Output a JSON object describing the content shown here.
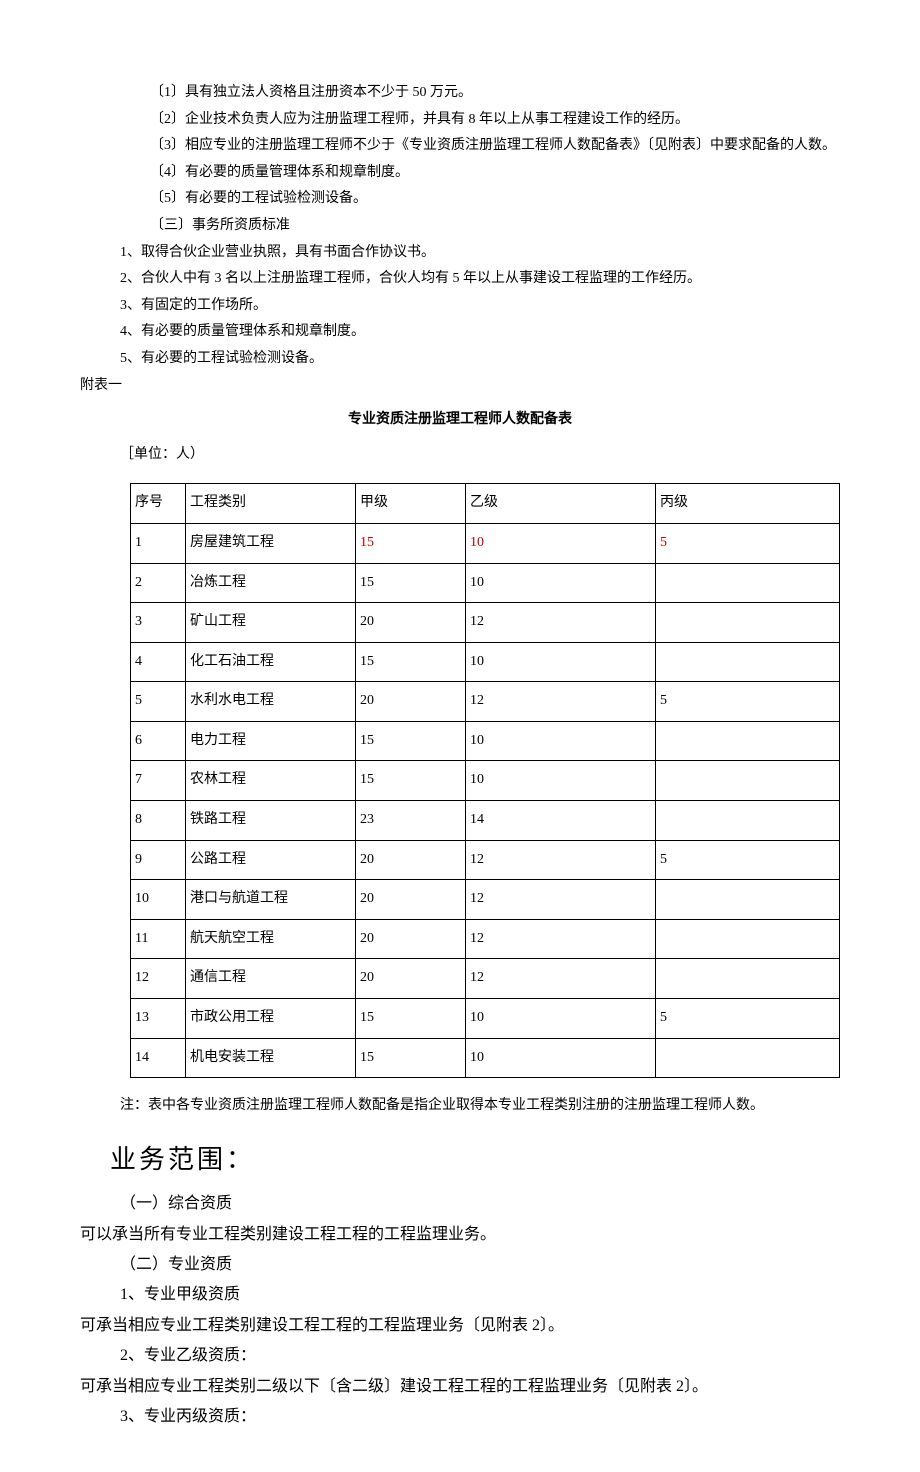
{
  "lines": [
    {
      "cls": "indent-1",
      "text": "〔1〕具有独立法人资格且注册资本不少于 50 万元。"
    },
    {
      "cls": "indent-1",
      "text": "〔2〕企业技术负责人应为注册监理工程师，并具有 8 年以上从事工程建设工作的经历。"
    },
    {
      "cls": "indent-1",
      "text": "〔3〕相应专业的注册监理工程师不少于《专业资质注册监理工程师人数配备表》〔见附表〕中要求配备的人数。"
    },
    {
      "cls": "indent-1",
      "text": "〔4〕有必要的质量管理体系和规章制度。"
    },
    {
      "cls": "indent-1",
      "text": "〔5〕有必要的工程试验检测设备。"
    },
    {
      "cls": "indent-1",
      "text": "〔三〕事务所资质标准"
    },
    {
      "cls": "indent-2",
      "text": "1、取得合伙企业营业执照，具有书面合作协议书。"
    },
    {
      "cls": "indent-2",
      "text": "2、合伙人中有 3 名以上注册监理工程师，合伙人均有 5 年以上从事建设工程监理的工作经历。"
    },
    {
      "cls": "indent-2",
      "text": "3、有固定的工作场所。"
    },
    {
      "cls": "indent-2",
      "text": "4、有必要的质量管理体系和规章制度。"
    },
    {
      "cls": "indent-2",
      "text": "5、有必要的工程试验检测设备。"
    }
  ],
  "annex_label": "附表一",
  "table_title": "专业资质注册监理工程师人数配备表",
  "unit_label": "［单位：人）",
  "table": {
    "headers": [
      "序号",
      "工程类别",
      "甲级",
      "乙级",
      "丙级"
    ],
    "rows": [
      {
        "seq": "1",
        "type": "房屋建筑工程",
        "a": "15",
        "b": "10",
        "c": "5",
        "highlight": true
      },
      {
        "seq": "2",
        "type": "冶炼工程",
        "a": "15",
        "b": "10",
        "c": "",
        "highlight": false
      },
      {
        "seq": "3",
        "type": "矿山工程",
        "a": "20",
        "b": "12",
        "c": "",
        "highlight": false
      },
      {
        "seq": "4",
        "type": "化工石油工程",
        "a": "15",
        "b": "10",
        "c": "",
        "highlight": false
      },
      {
        "seq": "5",
        "type": "水利水电工程",
        "a": "20",
        "b": "12",
        "c": "5",
        "highlight": false
      },
      {
        "seq": "6",
        "type": "电力工程",
        "a": "15",
        "b": "10",
        "c": "",
        "highlight": false
      },
      {
        "seq": "7",
        "type": "农林工程",
        "a": "15",
        "b": "10",
        "c": "",
        "highlight": false
      },
      {
        "seq": "8",
        "type": "铁路工程",
        "a": "23",
        "b": "14",
        "c": "",
        "highlight": false
      },
      {
        "seq": "9",
        "type": "公路工程",
        "a": "20",
        "b": "12",
        "c": "5",
        "highlight": false
      },
      {
        "seq": "10",
        "type": "港口与航道工程",
        "a": "20",
        "b": "12",
        "c": "",
        "highlight": false
      },
      {
        "seq": "11",
        "type": "航天航空工程",
        "a": "20",
        "b": "12",
        "c": "",
        "highlight": false
      },
      {
        "seq": "12",
        "type": "通信工程",
        "a": "20",
        "b": "12",
        "c": "",
        "highlight": false
      },
      {
        "seq": "13",
        "type": "市政公用工程",
        "a": "15",
        "b": "10",
        "c": "5",
        "highlight": false
      },
      {
        "seq": "14",
        "type": "机电安装工程",
        "a": "15",
        "b": "10",
        "c": "",
        "highlight": false
      }
    ]
  },
  "note_text": "注：表中各专业资质注册监理工程师人数配备是指企业取得本专业工程类别注册的注册监理工程师人数。",
  "section_heading": "业务范围：",
  "body_lines": [
    {
      "cls": "body-indent",
      "text": "（一）综合资质"
    },
    {
      "cls": "body-text",
      "text": "可以承当所有专业工程类别建设工程工程的工程监理业务。"
    },
    {
      "cls": "body-indent",
      "text": "（二）专业资质"
    },
    {
      "cls": "body-indent",
      "text": "1、专业甲级资质"
    },
    {
      "cls": "body-text",
      "text": "可承当相应专业工程类别建设工程工程的工程监理业务〔见附表 2〕。"
    },
    {
      "cls": "body-indent",
      "text": "2、专业乙级资质："
    },
    {
      "cls": "body-text",
      "text": "可承当相应专业工程类别二级以下〔含二级〕建设工程工程的工程监理业务〔见附表 2〕。"
    },
    {
      "cls": "body-indent",
      "text": "3、专业丙级资质："
    }
  ],
  "colors": {
    "text": "#000000",
    "highlight": "#c00000",
    "border": "#000000",
    "background": "#ffffff"
  }
}
